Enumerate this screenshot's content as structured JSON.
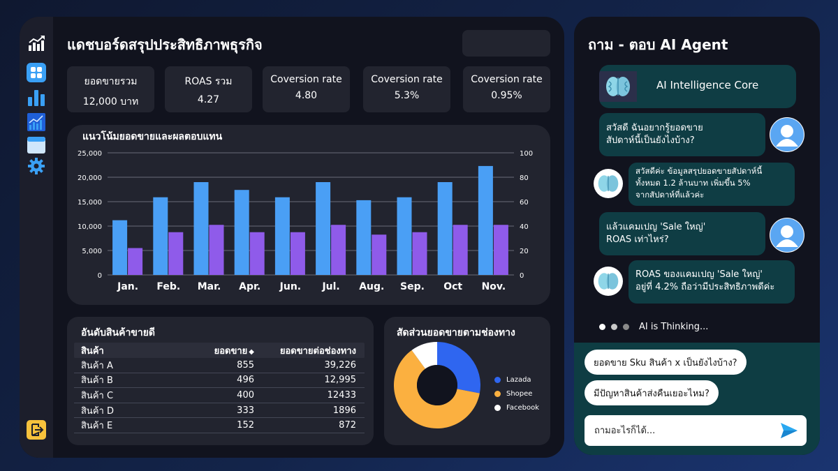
{
  "dashboard": {
    "title": "แดชบอร์ดสรุปประสิทธิภาพธุรกิจ",
    "kpis": [
      {
        "label": "ยอดขายรวม",
        "value": "12,000 บาท"
      },
      {
        "label": "ROAS รวม",
        "value": "4.27"
      },
      {
        "label": "Coversion rate",
        "value": "4.80"
      },
      {
        "label": "Coversion rate",
        "value": "5.3%"
      },
      {
        "label": "Coversion rate",
        "value": "0.95%"
      }
    ],
    "chart_title": "แนวโน้มยอดขายและผลตอบแทน",
    "ranking": {
      "title": "อันดับสินค้าขายดี",
      "headers": [
        "สินค้า",
        "ยอดขาย",
        "ยอดขายต่อช่องทาง"
      ],
      "rows": [
        [
          "สินค้า A",
          "855",
          "39,226"
        ],
        [
          "สินค้า B",
          "496",
          "12,995"
        ],
        [
          "สินค้า C",
          "400",
          "12433"
        ],
        [
          "สินค้า D",
          "333",
          "1896"
        ],
        [
          "สินค้า E",
          "152",
          "872"
        ]
      ]
    },
    "pie_title": "สัดส่วนยอดขายตามช่องทาง"
  },
  "chart_data": [
    {
      "type": "bar",
      "categories": [
        "Jan.",
        "Feb.",
        "Mar.",
        "Apr.",
        "Jun.",
        "Jul.",
        "Aug.",
        "Sep.",
        "Oct",
        "Nov."
      ],
      "series": [
        {
          "values": [
            11200,
            15900,
            19000,
            17400,
            15900,
            19000,
            15300,
            15900,
            19000,
            22300
          ],
          "color": "#4a9ff5",
          "axis": "left"
        },
        {
          "values": [
            22,
            35,
            41,
            35,
            35,
            41,
            33,
            35,
            41,
            41
          ],
          "color": "#8f5bea",
          "axis": "right"
        }
      ],
      "ylim": [
        0,
        25000
      ],
      "yticks": [
        "25,000",
        "20,000",
        "15,000",
        "10,000",
        "5,000",
        "0"
      ],
      "y2lim": [
        0,
        100
      ],
      "y2ticks": [
        "100",
        "80",
        "60",
        "40",
        "20",
        "0"
      ],
      "grid": true
    },
    {
      "type": "pie",
      "donut": true,
      "slices": [
        {
          "label": "Lazada",
          "value": 28,
          "color": "#2f66f0"
        },
        {
          "label": "Shopee",
          "value": 62,
          "color": "#fbb040"
        },
        {
          "label": "Facebook",
          "value": 10,
          "color": "#ffffff"
        }
      ]
    }
  ],
  "ai": {
    "title": "ถาม - ตอบ AI Agent",
    "core_label": "AI Intelligence Core",
    "messages": [
      {
        "from": "user",
        "lines": [
          "สวัสดี ฉันอยากรู้ยอดขาย",
          "สัปดาห์นี้เป็นยังไงบ้าง?"
        ]
      },
      {
        "from": "bot",
        "lines": [
          "สวัสดีค่ะ ข้อมูลสรุปยอดขายสัปดาห์นี้",
          "ทั้งหมด 1.2 ล้านบาท เพิ่มขึ้น 5%",
          "จากสัปดาห์ที่แล้วค่ะ"
        ]
      },
      {
        "from": "user",
        "lines": [
          "แล้วแคมเปญ 'Sale ใหญ่'",
          "ROAS เท่าไหร่?"
        ]
      },
      {
        "from": "bot",
        "lines": [
          "ROAS ของแคมเปญ 'Sale ใหญ่'",
          "อยู่ที่ 4.2% ถือว่ามีประสิทธิภาพดีค่ะ"
        ]
      }
    ],
    "thinking": "AI is Thinking...",
    "suggestions": [
      "ยอดขาย Sku สินค้า x เป็นยังไงบ้าง?",
      "มีปัญหาสินค้าส่งคืนเยอะไหม?"
    ],
    "input_placeholder": "ถามอะไรก็ได้..."
  },
  "colors": {
    "accent_blue": "#4a9ff5",
    "accent_purple": "#8f5bea",
    "panel_teal": "#0f3d44"
  }
}
